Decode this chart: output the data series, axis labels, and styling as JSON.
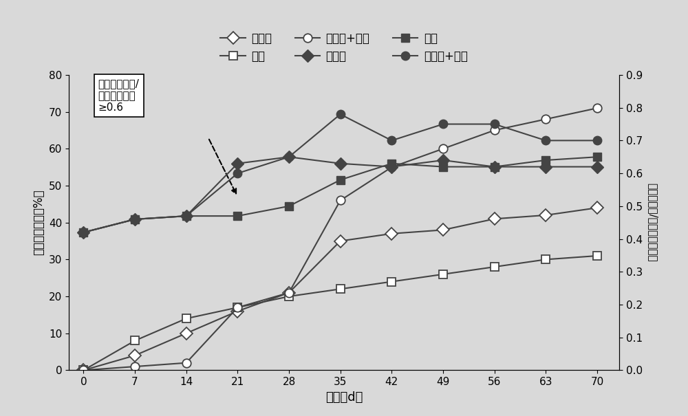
{
  "x": [
    0,
    7,
    14,
    21,
    28,
    35,
    42,
    49,
    56,
    63,
    70
  ],
  "series_open_diamond": [
    0,
    4,
    10,
    16,
    21,
    35,
    37,
    38,
    41,
    42,
    44
  ],
  "series_open_square": [
    0,
    8,
    14,
    17,
    20,
    22,
    24,
    26,
    28,
    30,
    31
  ],
  "series_open_circle": [
    0,
    1,
    2,
    17,
    21,
    46,
    55,
    60,
    65,
    68,
    71
  ],
  "series_filled_diamond": [
    0.42,
    0.46,
    0.47,
    0.63,
    0.65,
    0.63,
    0.62,
    0.64,
    0.62,
    0.62,
    0.62
  ],
  "series_filled_square": [
    0.42,
    0.46,
    0.47,
    0.47,
    0.5,
    0.58,
    0.63,
    0.62,
    0.62,
    0.64,
    0.65
  ],
  "series_filled_circle": [
    0.42,
    0.46,
    0.47,
    0.6,
    0.65,
    0.78,
    0.7,
    0.75,
    0.75,
    0.7,
    0.7
  ],
  "x_ticks": [
    0,
    7,
    14,
    21,
    28,
    35,
    42,
    49,
    56,
    63,
    70
  ],
  "y_left_ticks": [
    0,
    10,
    20,
    30,
    40,
    50,
    60,
    70,
    80
  ],
  "y_right_ticks": [
    0.0,
    0.1,
    0.2,
    0.3,
    0.4,
    0.5,
    0.6,
    0.7,
    0.8,
    0.9
  ],
  "xlabel": "时间（d）",
  "ylabel_left": "石油烳去除率（%）",
  "ylabel_right": "石油烳含量/总有机碳含量量",
  "legend_row1_labels": [
    "微生物",
    "电动",
    "微生物+电动"
  ],
  "legend_row2_labels": [
    "微生物",
    "电动",
    "微生物+电动"
  ],
  "annotation_box_text": "总石油烳含量/\n总有机碳含量\n≥0.6",
  "line_color": "#444444",
  "background_color": "#d9d9d9",
  "fig_width": 10.0,
  "fig_height": 6.05
}
